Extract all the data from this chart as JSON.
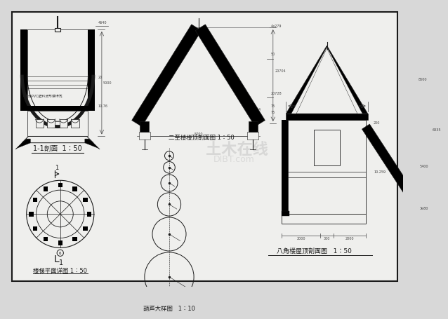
{
  "bg_color": "#d8d8d8",
  "paper_color": "#efefed",
  "line_color": "#1a1a1a",
  "dim_color": "#444444",
  "label_1_1": "1-1剖面  1：50",
  "label_plan": "楼梯平面详图 1：50",
  "label_gourd": "葫芦大样图   1：10",
  "label_section": "八角楼屋顶剖面图   1：50",
  "label_second": "二至楼楼顶剖面图 1：50"
}
